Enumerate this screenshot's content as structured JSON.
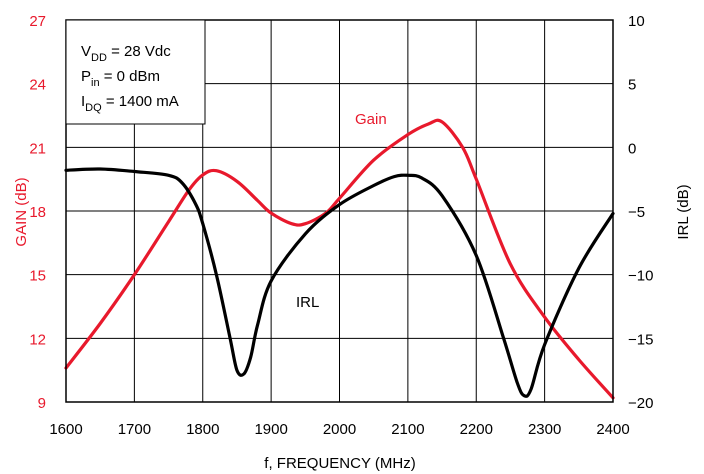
{
  "chart_data": {
    "type": "line",
    "xlabel": "f, FREQUENCY (MHz)",
    "y_left_label": "GAIN (dB)",
    "y_right_label": "IRL (dB)",
    "xlim": [
      1600,
      2400
    ],
    "ylim_left": [
      9,
      27
    ],
    "ylim_right": [
      -20,
      10
    ],
    "x_ticks": [
      "1600",
      "1700",
      "1800",
      "1900",
      "2000",
      "2100",
      "2200",
      "2300",
      "2400"
    ],
    "y_left_ticks": [
      "9",
      "12",
      "15",
      "18",
      "21",
      "24",
      "27"
    ],
    "y_right_ticks": [
      "−20",
      "−15",
      "−10",
      "−5",
      "0",
      "5",
      "10"
    ],
    "grid": true,
    "conditions": {
      "vdd": {
        "main": "V",
        "sub": "DD",
        "rest": " = 28 Vdc"
      },
      "pin": {
        "main": "P",
        "sub": "in",
        "rest": " = 0 dBm"
      },
      "idq": {
        "main": "I",
        "sub": "DQ",
        "rest": " = 1400 mA"
      }
    },
    "colors": {
      "gain": "#e8192c",
      "irl": "#000000",
      "left_axis": "#e8192c",
      "right_axis": "#000000"
    },
    "series": [
      {
        "name": "Gain",
        "axis": "left",
        "color": "#e8192c",
        "x": [
          1600,
          1650,
          1700,
          1750,
          1780,
          1800,
          1820,
          1850,
          1880,
          1900,
          1930,
          1950,
          1980,
          2000,
          2050,
          2100,
          2130,
          2150,
          2180,
          2200,
          2250,
          2300,
          2350,
          2400
        ],
        "values": [
          10.6,
          12.7,
          15.0,
          17.5,
          19.0,
          19.7,
          19.9,
          19.4,
          18.5,
          17.9,
          17.4,
          17.4,
          17.9,
          18.6,
          20.4,
          21.6,
          22.1,
          22.2,
          21.0,
          19.5,
          15.5,
          13.0,
          11.0,
          9.2
        ]
      },
      {
        "name": "IRL",
        "axis": "right",
        "color": "#000000",
        "x": [
          1600,
          1650,
          1700,
          1750,
          1770,
          1790,
          1800,
          1820,
          1840,
          1850,
          1860,
          1870,
          1880,
          1900,
          1950,
          2000,
          2050,
          2080,
          2100,
          2120,
          2150,
          2200,
          2240,
          2260,
          2270,
          2280,
          2300,
          2350,
          2400
        ],
        "values": [
          -1.8,
          -1.7,
          -1.9,
          -2.2,
          -2.8,
          -4.5,
          -6.0,
          -10.0,
          -15.0,
          -17.5,
          -17.8,
          -16.5,
          -14.0,
          -10.5,
          -6.8,
          -4.5,
          -3.0,
          -2.3,
          -2.2,
          -2.4,
          -3.8,
          -8.5,
          -15.0,
          -18.5,
          -19.5,
          -19.0,
          -15.5,
          -9.5,
          -5.2
        ]
      }
    ],
    "annotations": [
      "Gain",
      "IRL"
    ]
  }
}
